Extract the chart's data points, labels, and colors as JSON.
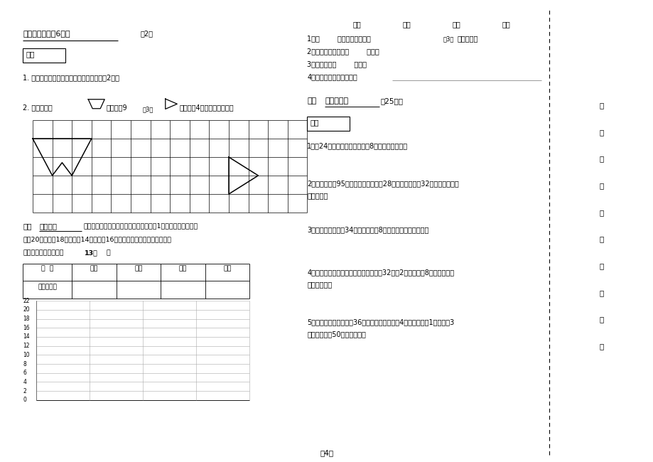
{
  "bg_color": "#ffffff",
  "page_width": 9.2,
  "page_height": 6.5,
  "dpi": 100,
  "section5_title": "五．我会画。（6分）",
  "page2_label": "第2页",
  "defen_label": "得分",
  "q5_1": "1. 在下面先画一个锐角，再画一个钝角。（2分）",
  "q5_2_pre": "2. 分别画出将",
  "q5_2_mid": "向右平移9",
  "q5_2_page": "第3页",
  "q5_2_post": "向上平移4格后得到的图形。",
  "section6_pre": "六．",
  "section6_bold": "我会统计",
  "section6_text1": "。在向灾区儿童献爱心捐款活动中，二（1）班同学捐款如下：",
  "section6_text2": "一组20元，二组18元，三组14元，四组16元，请你完成下面的统计表和统",
  "section6_text3_pre": "计图，并回答问题。（",
  "section6_text3_bold": "13分",
  "section6_text3_post": "）",
  "table_headers": [
    "组  别",
    "一组",
    "二组",
    "三组",
    "四组"
  ],
  "table_row2": "数量（元）",
  "chart_yticks": [
    0,
    2,
    4,
    6,
    8,
    10,
    12,
    14,
    16,
    18,
    20,
    22
  ],
  "right_col_headers": [
    "一组",
    "二组",
    "三组",
    "四组"
  ],
  "right_q1a": "1．（        ）组捐得最多，（",
  "right_q1_page": "第3页",
  "right_q1b": "）得最少。",
  "right_q2": "2．一组比三组多捐（        ）元。",
  "right_q3": "3．全班共捐（        ）元。",
  "right_q4": "4．你还能提出什么问题？",
  "sec7_pre": "七．",
  "sec7_bold": "解决问题。",
  "sec7_post": "（25分）",
  "prob1": "1．有24辆小汽车，如果每排停8辆，可以停几排？",
  "prob2a": "2．水果店里有95千克香蕉，上午卖出28千克，下午卖出32千克，还剩多少",
  "prob2b": "千克香蕉？",
  "prob3": "3．教室里有单人椅34把，双人椅有8把，求一共能坐多少人？",
  "prob4a": "4．同学们要到公园划船，已知我们共有32人，2只小船可坐8人，求我们需",
  "prob4b": "要几只小船？",
  "prob5a": "5．商店里书包的价格是36元，练习本的价格是4元，小明想买1个书包和3",
  "prob5b": "本练习本，带50元钱够用吗？",
  "margin_chars": [
    "请",
    "不",
    "要",
    "在",
    "装",
    "订",
    "线",
    "内",
    "答",
    "题"
  ],
  "page4_label": "第4页"
}
